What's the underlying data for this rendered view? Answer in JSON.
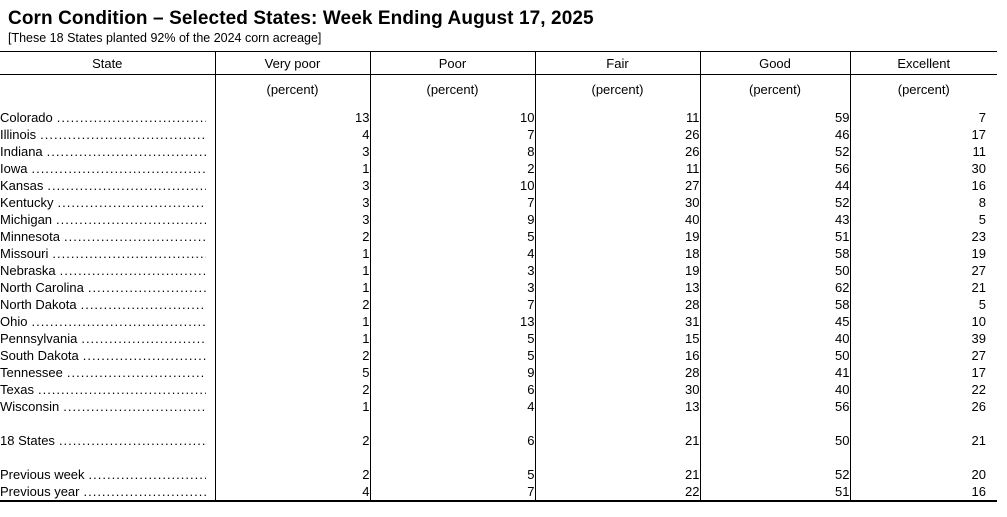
{
  "page": {
    "title": "Corn Condition – Selected States: Week Ending August 17, 2025",
    "subtitle": "[These 18 States planted 92% of the 2024 corn acreage]"
  },
  "table": {
    "columns": [
      "State",
      "Very poor",
      "Poor",
      "Fair",
      "Good",
      "Excellent"
    ],
    "unit_label": "(percent)",
    "value_columns": [
      "Very poor",
      "Poor",
      "Fair",
      "Good",
      "Excellent"
    ],
    "rows": [
      {
        "state": "Colorado",
        "values": [
          "13",
          "10",
          "11",
          "59",
          "7"
        ]
      },
      {
        "state": "Illinois",
        "values": [
          "4",
          "7",
          "26",
          "46",
          "17"
        ]
      },
      {
        "state": "Indiana",
        "values": [
          "3",
          "8",
          "26",
          "52",
          "11"
        ]
      },
      {
        "state": "Iowa",
        "values": [
          "1",
          "2",
          "11",
          "56",
          "30"
        ]
      },
      {
        "state": "Kansas",
        "values": [
          "3",
          "10",
          "27",
          "44",
          "16"
        ]
      },
      {
        "state": "Kentucky",
        "values": [
          "3",
          "7",
          "30",
          "52",
          "8"
        ]
      },
      {
        "state": "Michigan",
        "values": [
          "3",
          "9",
          "40",
          "43",
          "5"
        ]
      },
      {
        "state": "Minnesota",
        "values": [
          "2",
          "5",
          "19",
          "51",
          "23"
        ]
      },
      {
        "state": "Missouri",
        "values": [
          "1",
          "4",
          "18",
          "58",
          "19"
        ]
      },
      {
        "state": "Nebraska",
        "values": [
          "1",
          "3",
          "19",
          "50",
          "27"
        ]
      },
      {
        "state": "North Carolina",
        "values": [
          "1",
          "3",
          "13",
          "62",
          "21"
        ]
      },
      {
        "state": "North Dakota",
        "values": [
          "2",
          "7",
          "28",
          "58",
          "5"
        ]
      },
      {
        "state": "Ohio",
        "values": [
          "1",
          "13",
          "31",
          "45",
          "10"
        ]
      },
      {
        "state": "Pennsylvania",
        "values": [
          "1",
          "5",
          "15",
          "40",
          "39"
        ]
      },
      {
        "state": "South Dakota",
        "values": [
          "2",
          "5",
          "16",
          "50",
          "27"
        ]
      },
      {
        "state": "Tennessee",
        "values": [
          "5",
          "9",
          "28",
          "41",
          "17"
        ]
      },
      {
        "state": "Texas",
        "values": [
          "2",
          "6",
          "30",
          "40",
          "22"
        ]
      },
      {
        "state": "Wisconsin",
        "values": [
          "1",
          "4",
          "13",
          "56",
          "26"
        ]
      }
    ],
    "total_row": {
      "state": "18 States",
      "values": [
        "2",
        "6",
        "21",
        "50",
        "21"
      ]
    },
    "comparison_rows": [
      {
        "state": "Previous week",
        "values": [
          "2",
          "5",
          "21",
          "52",
          "20"
        ]
      },
      {
        "state": "Previous year",
        "values": [
          "4",
          "7",
          "22",
          "51",
          "16"
        ]
      }
    ]
  }
}
